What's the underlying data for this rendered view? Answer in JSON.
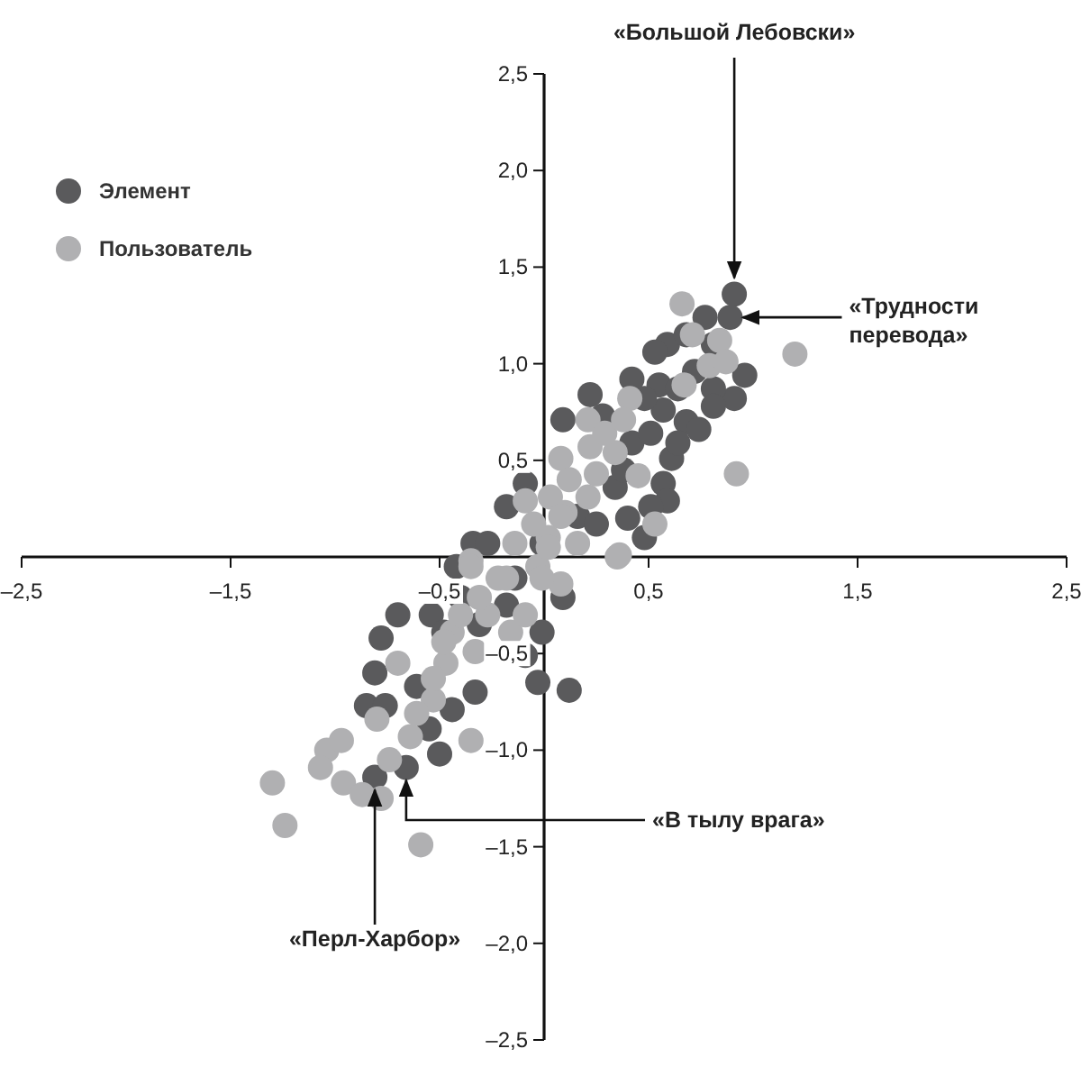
{
  "chart_data": {
    "type": "scatter",
    "xlim": [
      -2.5,
      2.5
    ],
    "ylim": [
      -2.5,
      2.5
    ],
    "xticks": [
      {
        "value": -2.5,
        "label": "–2,5"
      },
      {
        "value": -1.5,
        "label": "–1,5"
      },
      {
        "value": -0.5,
        "label": "–0,5"
      },
      {
        "value": 0.5,
        "label": "0,5"
      },
      {
        "value": 1.5,
        "label": "1,5"
      },
      {
        "value": 2.5,
        "label": "2,5"
      }
    ],
    "yticks": [
      {
        "value": -2.5,
        "label": "–2,5"
      },
      {
        "value": -2,
        "label": "–2,0"
      },
      {
        "value": -1.5,
        "label": "–1,5"
      },
      {
        "value": -1,
        "label": "–1,0"
      },
      {
        "value": -0.5,
        "label": "–0,5"
      },
      {
        "value": 0.5,
        "label": "0,5"
      },
      {
        "value": 1,
        "label": "1,0"
      },
      {
        "value": 1.5,
        "label": "1,5"
      },
      {
        "value": 2,
        "label": "2,0"
      },
      {
        "value": 2.5,
        "label": "2,5"
      }
    ],
    "grid": false,
    "legend": "top left",
    "marker": "circle",
    "series": [
      {
        "name": "Элемент",
        "color": "#5a5a5c",
        "x": [
          0.91,
          0.89,
          0.77,
          0.59,
          0.53,
          0.96,
          0.91,
          0.55,
          0.57,
          0.68,
          0.74,
          0.61,
          0.57,
          0.59,
          0.22,
          0.09,
          0.28,
          0.48,
          -0.18,
          -0.09,
          -0.34,
          -0.42,
          0.48,
          0.4,
          -0.7,
          -0.78,
          -0.54,
          -0.81,
          -0.85,
          -0.76,
          -0.61,
          -0.5,
          -0.66,
          -0.81,
          -0.03,
          0.12,
          -0.01,
          0.09,
          -0.09,
          -0.33,
          -0.44,
          -0.55,
          -0.27,
          -0.14,
          -0.01,
          0.16,
          0.34,
          0.25,
          -0.4,
          -0.48,
          -0.31,
          -0.18,
          0.42,
          0.51,
          0.38,
          0.64,
          0.72,
          0.81,
          0.81,
          0.42,
          0.64,
          0.51,
          0.68,
          0.81
        ],
        "values": [
          1.36,
          1.24,
          1.24,
          1.1,
          1.06,
          0.94,
          0.82,
          0.89,
          0.76,
          0.7,
          0.66,
          0.51,
          0.38,
          0.29,
          0.84,
          0.71,
          0.73,
          0.82,
          0.26,
          0.38,
          0.07,
          -0.05,
          0.1,
          0.2,
          -0.3,
          -0.42,
          -0.3,
          -0.6,
          -0.77,
          -0.77,
          -0.67,
          -1.02,
          -1.09,
          -1.14,
          -0.65,
          -0.69,
          -0.39,
          -0.21,
          -0.51,
          -0.7,
          -0.79,
          -0.89,
          0.07,
          -0.11,
          0.07,
          0.21,
          0.36,
          0.17,
          -0.21,
          -0.39,
          -0.35,
          -0.25,
          0.59,
          0.64,
          0.45,
          0.87,
          0.96,
          0.87,
          0.78,
          0.92,
          0.59,
          0.26,
          1.15,
          1.1
        ]
      },
      {
        "name": "Пользователь",
        "color": "#b0b0b2",
        "x": [
          0.66,
          0.71,
          0.84,
          0.79,
          0.87,
          1.2,
          0.67,
          0.92,
          0.41,
          0.21,
          0.34,
          0.08,
          -0.09,
          0.22,
          0.45,
          0.53,
          0.36,
          0.1,
          0.02,
          -0.35,
          -1.3,
          -1.24,
          -0.59,
          -1.04,
          -0.97,
          -1.07,
          -0.96,
          -0.87,
          -0.78,
          -0.8,
          -0.74,
          -0.64,
          -0.35,
          -0.7,
          -0.44,
          -0.47,
          -0.53,
          -0.33,
          -0.27,
          -0.18,
          -0.35,
          -0.03,
          -0.16,
          0.08,
          0.02,
          0.35,
          -0.14,
          -0.05,
          0.03,
          0.12,
          0.16,
          -0.22,
          -0.31,
          -0.4,
          -0.48,
          -0.53,
          -0.61,
          0.25,
          0.29,
          0.38,
          -0.01,
          -0.09,
          0.08,
          0.21
        ],
        "values": [
          1.31,
          1.15,
          1.12,
          0.99,
          1.01,
          1.05,
          0.89,
          0.43,
          0.82,
          0.71,
          0.54,
          0.51,
          0.29,
          0.57,
          0.42,
          0.17,
          0.01,
          0.23,
          0.1,
          -0.02,
          -1.17,
          -1.39,
          -1.49,
          -1,
          -0.95,
          -1.09,
          -1.17,
          -1.23,
          -1.25,
          -0.84,
          -1.05,
          -0.93,
          -0.95,
          -0.55,
          -0.39,
          -0.55,
          -0.74,
          -0.49,
          -0.3,
          -0.11,
          -0.05,
          -0.05,
          -0.39,
          -0.14,
          0.05,
          0,
          0.07,
          0.17,
          0.31,
          0.4,
          0.07,
          -0.11,
          -0.21,
          -0.3,
          -0.44,
          -0.63,
          -0.81,
          0.43,
          0.64,
          0.71,
          -0.11,
          -0.3,
          0.21,
          0.31
        ]
      }
    ],
    "annotations": [
      {
        "text": "«Большой Лебовски»",
        "x": 0.91,
        "y": 1.36
      },
      {
        "text": "«Трудности перевода»",
        "x": 0.89,
        "y": 1.24
      },
      {
        "text": "«Перл-Харбор»",
        "x": -0.81,
        "y": -1.14
      },
      {
        "text": "«В тылу врага»",
        "x": -0.66,
        "y": -1.09
      }
    ]
  }
}
